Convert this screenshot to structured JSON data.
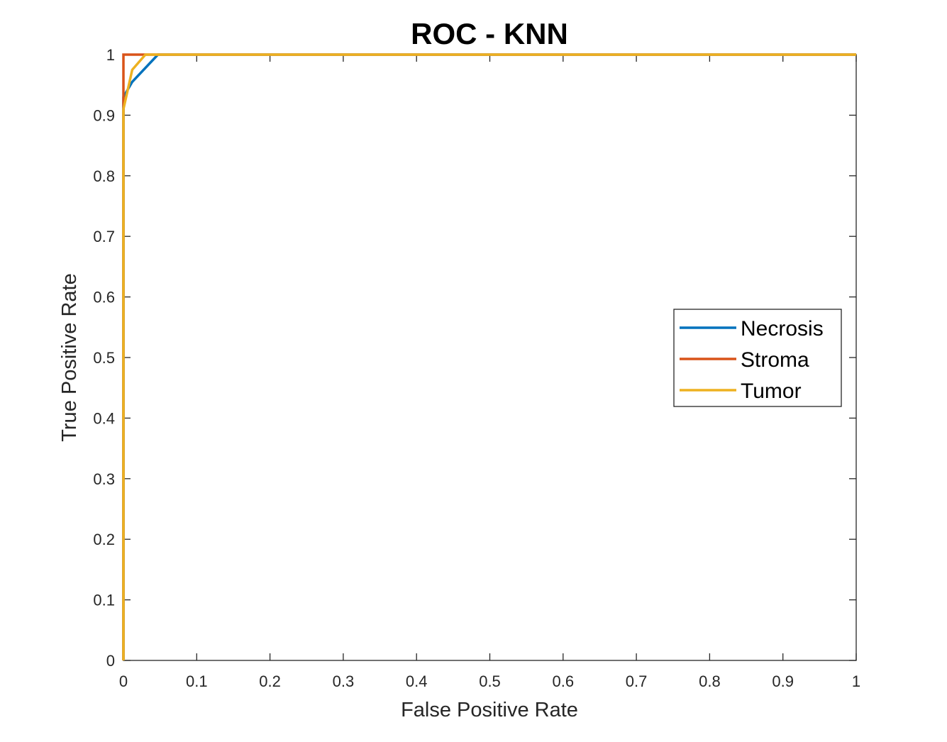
{
  "chart_data": {
    "type": "line",
    "title": "ROC - KNN",
    "xlabel": "False Positive Rate",
    "ylabel": "True Positive Rate",
    "xlim": [
      0,
      1
    ],
    "ylim": [
      0,
      1
    ],
    "xticks": [
      "0",
      "0.1",
      "0.2",
      "0.3",
      "0.4",
      "0.5",
      "0.6",
      "0.7",
      "0.8",
      "0.9",
      "1"
    ],
    "yticks": [
      "0",
      "0.1",
      "0.2",
      "0.3",
      "0.4",
      "0.5",
      "0.6",
      "0.7",
      "0.8",
      "0.9",
      "1"
    ],
    "grid": false,
    "legend_position": "right",
    "series": [
      {
        "name": "Necrosis",
        "color": "#0072BD",
        "x": [
          0,
          0,
          0.012,
          0.047,
          1
        ],
        "y": [
          0,
          0.93,
          0.955,
          1,
          1
        ]
      },
      {
        "name": "Stroma",
        "color": "#D95319",
        "x": [
          0,
          0,
          0.032,
          1
        ],
        "y": [
          0,
          1,
          1,
          1
        ]
      },
      {
        "name": "Tumor",
        "color": "#EDB120",
        "x": [
          0,
          0,
          0.012,
          0.03,
          1
        ],
        "y": [
          0,
          0.91,
          0.975,
          1,
          1
        ]
      }
    ]
  }
}
